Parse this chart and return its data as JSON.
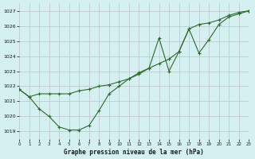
{
  "title": "Graphe pression niveau de la mer (hPa)",
  "background_color": "#d4f0f0",
  "grid_color": "#c0c8d0",
  "line_color": "#2d6a2d",
  "xlim": [
    0,
    23
  ],
  "ylim": [
    1018.5,
    1027.5
  ],
  "yticks": [
    1019,
    1020,
    1021,
    1022,
    1023,
    1024,
    1025,
    1026,
    1027
  ],
  "xticks": [
    0,
    1,
    2,
    3,
    4,
    5,
    6,
    7,
    8,
    9,
    10,
    11,
    12,
    13,
    14,
    15,
    16,
    17,
    18,
    19,
    20,
    21,
    22,
    23
  ],
  "series1_x": [
    0,
    1,
    2,
    3,
    4,
    5,
    6,
    7,
    8,
    9,
    10,
    11,
    12,
    13,
    14,
    15,
    16,
    17,
    18,
    19,
    20,
    21,
    22,
    23
  ],
  "series1_y": [
    1021.8,
    1021.3,
    1021.5,
    1021.5,
    1021.5,
    1021.5,
    1021.7,
    1021.8,
    1022.0,
    1022.1,
    1022.3,
    1022.5,
    1022.8,
    1023.2,
    1023.5,
    1023.8,
    1024.3,
    1025.8,
    1026.1,
    1026.2,
    1026.4,
    1026.7,
    1026.9,
    1027.0
  ],
  "series2_x": [
    0,
    1,
    2,
    3,
    4,
    5,
    6,
    7,
    8,
    9,
    10,
    11,
    12,
    13,
    14,
    15,
    16,
    17,
    18,
    19,
    20,
    21,
    22,
    23
  ],
  "series2_y": [
    1021.8,
    1021.3,
    1020.5,
    1020.0,
    1019.3,
    1019.1,
    1019.1,
    1019.4,
    1020.4,
    1021.5,
    1022.0,
    1022.5,
    1022.9,
    1023.2,
    1025.2,
    1023.0,
    1024.3,
    1025.8,
    1024.2,
    1025.1,
    1026.1,
    1026.6,
    1026.8,
    1027.0
  ]
}
